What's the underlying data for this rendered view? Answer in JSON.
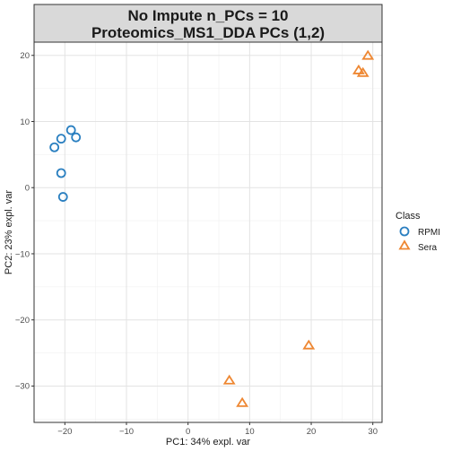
{
  "chart_data": {
    "type": "scatter",
    "title_line1": "No Impute n_PCs = 10",
    "title_line2": "Proteomics_MS1_DDA PCs (1,2)",
    "xlabel": "PC1: 34% expl. var",
    "ylabel": "PC2: 23% expl. var",
    "xlim": [
      -25,
      31.5
    ],
    "ylim": [
      -35.5,
      22
    ],
    "x_ticks": [
      -20,
      -10,
      0,
      10,
      20,
      30
    ],
    "y_ticks": [
      -30,
      -20,
      -10,
      0,
      10,
      20
    ],
    "grid": true,
    "legend": {
      "title": "Class",
      "position": "right"
    },
    "series": [
      {
        "name": "RPMI",
        "shape": "circle",
        "color": "#2a7fc0",
        "points": [
          {
            "x": -19.0,
            "y": 8.7
          },
          {
            "x": -18.2,
            "y": 7.6
          },
          {
            "x": -20.6,
            "y": 7.4
          },
          {
            "x": -21.7,
            "y": 6.1
          },
          {
            "x": -20.6,
            "y": 2.2
          },
          {
            "x": -20.3,
            "y": -1.4
          }
        ]
      },
      {
        "name": "Sera",
        "shape": "triangle",
        "color": "#ee8732",
        "points": [
          {
            "x": 29.2,
            "y": 19.9
          },
          {
            "x": 27.7,
            "y": 17.7
          },
          {
            "x": 28.4,
            "y": 17.3
          },
          {
            "x": 19.6,
            "y": -23.9
          },
          {
            "x": 6.7,
            "y": -29.2
          },
          {
            "x": 8.8,
            "y": -32.6
          }
        ]
      }
    ]
  }
}
